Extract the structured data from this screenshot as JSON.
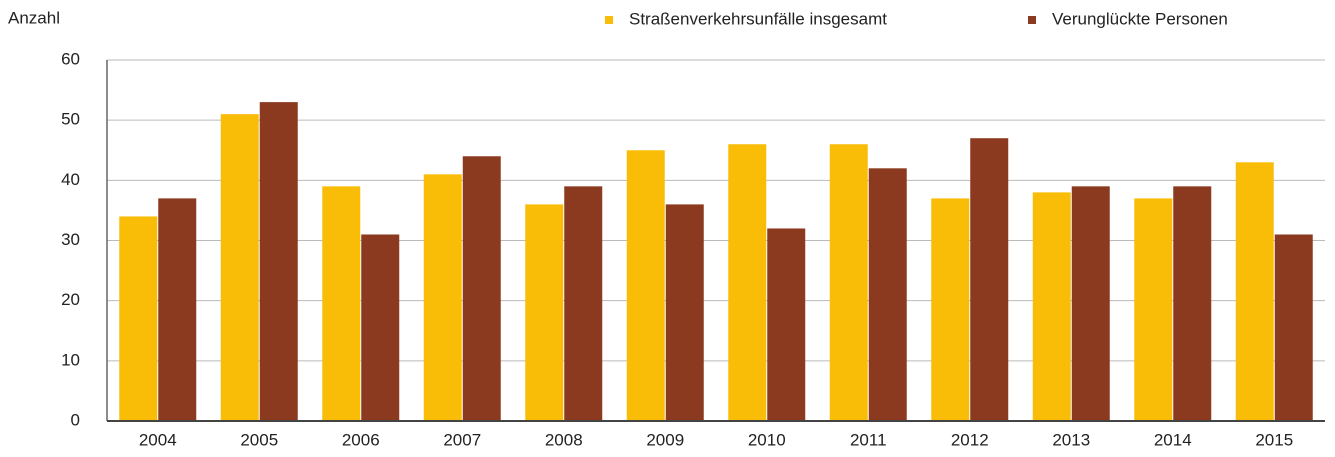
{
  "chart_data": {
    "type": "bar",
    "y_label": "Anzahl",
    "categories": [
      "2004",
      "2005",
      "2006",
      "2007",
      "2008",
      "2009",
      "2010",
      "2011",
      "2012",
      "2013",
      "2014",
      "2015"
    ],
    "series": [
      {
        "name": "Straßenverkehrsunfälle insgesamt",
        "color": "#f9bd08",
        "values": [
          34,
          51,
          39,
          41,
          36,
          45,
          46,
          46,
          37,
          38,
          37,
          43
        ]
      },
      {
        "name": "Verunglückte Personen",
        "color": "#8b3a1f",
        "values": [
          37,
          53,
          31,
          44,
          39,
          36,
          32,
          42,
          47,
          39,
          39,
          31
        ]
      }
    ],
    "ylim": [
      0,
      60
    ],
    "yticks": [
      0,
      10,
      20,
      30,
      40,
      50,
      60
    ],
    "grid": true,
    "legend": "top"
  }
}
